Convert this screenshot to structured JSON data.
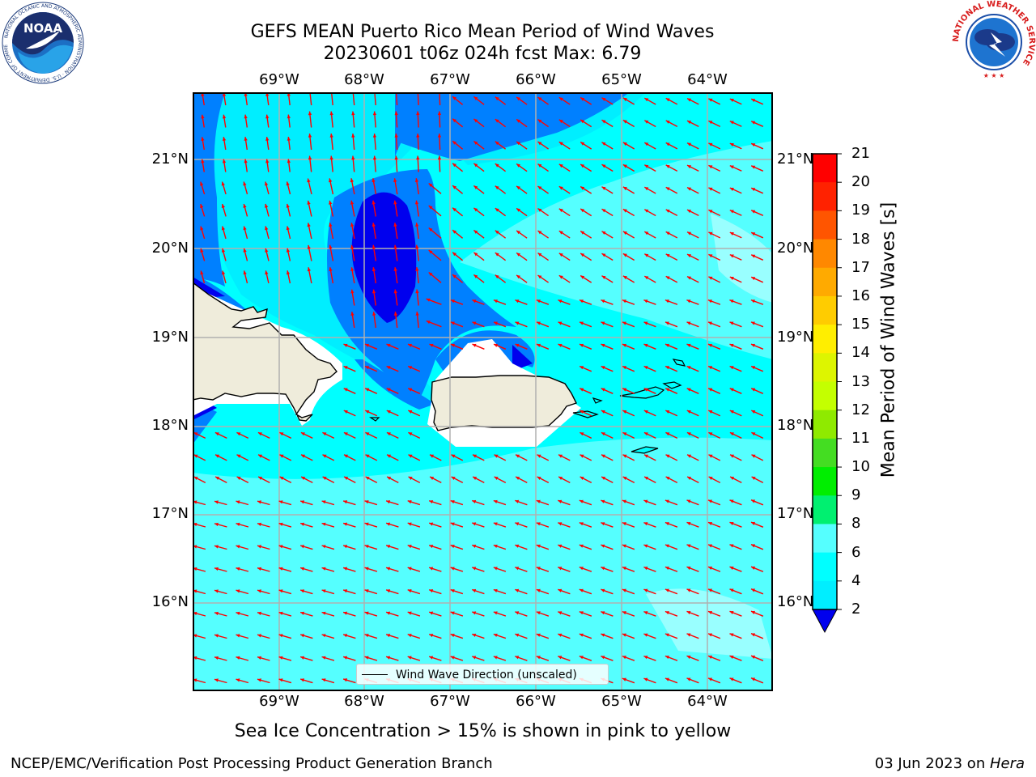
{
  "title": {
    "line1": "GEFS MEAN Puerto Rico Mean Period of Wind Waves",
    "line2": "20230601 t06z 024h fcst   Max: 6.79"
  },
  "logos": {
    "left": {
      "icon": "noaa-logo",
      "text": "NOAA",
      "ring_text": "NATIONAL OCEANIC AND ATMOSPHERIC ADMINISTRATION · U.S. DEPARTMENT OF COMMERCE"
    },
    "right": {
      "icon": "nws-logo",
      "ring_text": "NATIONAL WEATHER SERVICE"
    }
  },
  "map": {
    "lon_labels": [
      "69°W",
      "68°W",
      "67°W",
      "66°W",
      "65°W",
      "64°W"
    ],
    "lat_labels": [
      "21°N",
      "20°N",
      "19°N",
      "18°N",
      "17°N",
      "16°N"
    ],
    "legend": "Wind Wave Direction (unscaled)",
    "arrow_color": "#ff0000",
    "land_color": "#efecdb",
    "grid": true
  },
  "colorbar": {
    "label": "Mean Period of Wind Waves [s]",
    "ticks": [
      "21",
      "20",
      "19",
      "18",
      "17",
      "16",
      "15",
      "14",
      "13",
      "12",
      "11",
      "10",
      "9",
      "8",
      "6",
      "4",
      "2"
    ],
    "colors": [
      "#ff0000",
      "#ff2200",
      "#ff5500",
      "#ff8800",
      "#ffaa00",
      "#ffcc00",
      "#ffee00",
      "#ddf500",
      "#c4ff00",
      "#8fea00",
      "#44dd22",
      "#00ee00",
      "#00f070",
      "#57f599",
      "#99ffff",
      "#55ffff",
      "#00ffff",
      "#00eeff",
      "#0080ff",
      "#0000ee"
    ]
  },
  "chart_data": {
    "type": "heatmap",
    "title": "GEFS MEAN Puerto Rico Mean Period of Wind Waves",
    "subtitle": "20230601 t06z 024h fcst   Max: 6.79",
    "variable_label": "Mean Period of Wind Waves [s]",
    "levels": [
      2,
      4,
      6,
      8,
      9,
      10,
      11,
      12,
      13,
      14,
      15,
      16,
      17,
      18,
      19,
      20,
      21
    ],
    "lon_ticks": [
      "69°W",
      "68°W",
      "67°W",
      "66°W",
      "65°W",
      "64°W"
    ],
    "lat_ticks": [
      "21°N",
      "20°N",
      "19°N",
      "18°N",
      "17°N",
      "16°N"
    ],
    "max": 6.79,
    "predominant_direction": "toward northwest"
  },
  "footer": {
    "note": "Sea Ice Concentration > 15% is shown in pink to yellow",
    "left": "NCEP/EMC/Verification Post Processing Product Generation Branch",
    "right_date": "03 Jun 2023 on ",
    "right_machine": "Hera"
  }
}
